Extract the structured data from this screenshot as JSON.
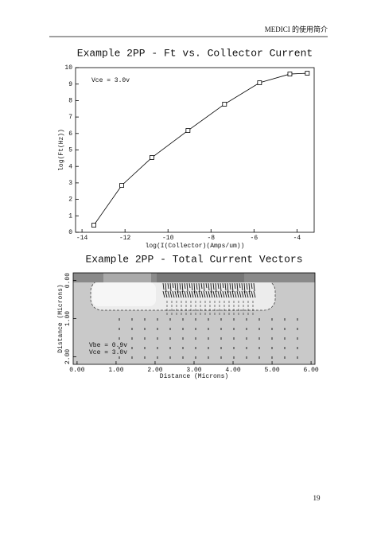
{
  "header": "MEDICI 的使用简介",
  "page_number": "19",
  "chart_data": [
    {
      "type": "line",
      "title": "Example 2PP - Ft vs. Collector Current",
      "xlabel": "log(I(Collector)(Amps/um))",
      "ylabel": "log(Ft(Hz))",
      "annotation": "Vce = 3.0v",
      "x": [
        -13.45,
        -12.15,
        -10.75,
        -9.07,
        -7.37,
        -5.74,
        -4.33,
        -3.52
      ],
      "values": [
        0.43,
        2.85,
        4.54,
        6.18,
        7.78,
        9.08,
        9.61,
        9.66
      ],
      "color": "#000000",
      "xlim": [
        -14.3,
        -3.2
      ],
      "xticks": [
        -14,
        -12,
        -10,
        -8,
        -6,
        -4
      ],
      "ylim": [
        0,
        10
      ],
      "yticks": [
        0,
        1,
        2,
        3,
        4,
        5,
        6,
        7,
        8,
        9,
        10
      ]
    },
    {
      "type": "vector-field",
      "title": "Example 2PP - Total Current Vectors",
      "xlabel": "Distance (Microns)",
      "ylabel": "Distance (Microns)",
      "annotations": [
        "Vbe = 0.9v",
        "Vce = 3.0v"
      ],
      "xlim": [
        -0.1,
        6.1
      ],
      "xticks": [
        {
          "value": 0,
          "label": "0.00"
        },
        {
          "value": 1,
          "label": "1.00"
        },
        {
          "value": 2,
          "label": "2.00"
        },
        {
          "value": 3,
          "label": "3.00"
        },
        {
          "value": 4,
          "label": "4.00"
        },
        {
          "value": 5,
          "label": "5.00"
        },
        {
          "value": 6,
          "label": "6.00"
        }
      ],
      "ylim": [
        2.2,
        -0.2
      ],
      "yticks": [
        {
          "value": 0,
          "label": "0.00"
        },
        {
          "value": 1,
          "label": "1.00"
        },
        {
          "value": 2,
          "label": "2.00"
        }
      ]
    }
  ]
}
